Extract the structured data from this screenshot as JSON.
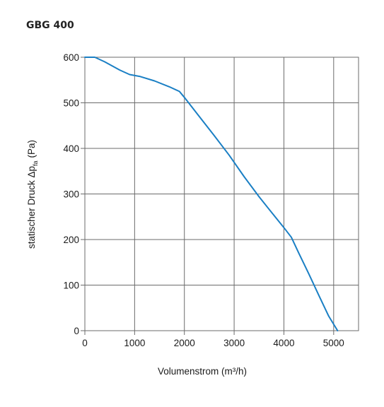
{
  "chart_data": {
    "type": "line",
    "title": "GBG 400",
    "xlabel": "Volumenstrom (m³/h)",
    "ylabel": {
      "text": "statischer Druck Δp",
      "subscript": "fa",
      "unit": "(Pa)"
    },
    "xlim": [
      0,
      5500
    ],
    "ylim": [
      0,
      600
    ],
    "x_ticks": [
      0,
      1000,
      2000,
      3000,
      4000,
      5000
    ],
    "y_ticks": [
      0,
      100,
      200,
      300,
      400,
      500,
      600
    ],
    "grid": true,
    "series": [
      {
        "color": "#1a7fc4",
        "points": [
          [
            0,
            600
          ],
          [
            200,
            600
          ],
          [
            400,
            590
          ],
          [
            700,
            572
          ],
          [
            900,
            562
          ],
          [
            1100,
            558
          ],
          [
            1400,
            548
          ],
          [
            1700,
            535
          ],
          [
            1900,
            525
          ],
          [
            2000,
            512
          ],
          [
            2300,
            470
          ],
          [
            2600,
            428
          ],
          [
            2900,
            385
          ],
          [
            3200,
            338
          ],
          [
            3500,
            294
          ],
          [
            3800,
            253
          ],
          [
            4000,
            226
          ],
          [
            4150,
            205
          ],
          [
            4300,
            170
          ],
          [
            4500,
            125
          ],
          [
            4700,
            78
          ],
          [
            4900,
            32
          ],
          [
            5080,
            0
          ]
        ]
      }
    ]
  }
}
